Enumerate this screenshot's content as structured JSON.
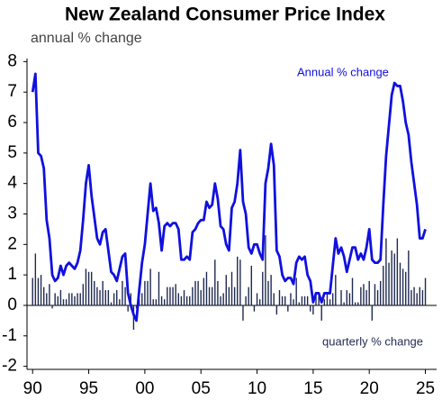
{
  "chart_data": {
    "type": "line_bar",
    "title": "New Zealand Consumer Price Index",
    "subtitle": "annual % change",
    "annotations": [
      "Annual % change",
      "quarterly % change"
    ],
    "x": [
      1990,
      1990.25,
      1990.5,
      1990.75,
      1991,
      1991.25,
      1991.5,
      1991.75,
      1992,
      1992.25,
      1992.5,
      1992.75,
      1993,
      1993.25,
      1993.5,
      1993.75,
      1994,
      1994.25,
      1994.5,
      1994.75,
      1995,
      1995.25,
      1995.5,
      1995.75,
      1996,
      1996.25,
      1996.5,
      1996.75,
      1997,
      1997.25,
      1997.5,
      1997.75,
      1998,
      1998.25,
      1998.5,
      1998.75,
      1999,
      1999.25,
      1999.5,
      1999.75,
      2000,
      2000.25,
      2000.5,
      2000.75,
      2001,
      2001.25,
      2001.5,
      2001.75,
      2002,
      2002.25,
      2002.5,
      2002.75,
      2003,
      2003.25,
      2003.5,
      2003.75,
      2004,
      2004.25,
      2004.5,
      2004.75,
      2005,
      2005.25,
      2005.5,
      2005.75,
      2006,
      2006.25,
      2006.5,
      2006.75,
      2007,
      2007.25,
      2007.5,
      2007.75,
      2008,
      2008.25,
      2008.5,
      2008.75,
      2009,
      2009.25,
      2009.5,
      2009.75,
      2010,
      2010.25,
      2010.5,
      2010.75,
      2011,
      2011.25,
      2011.5,
      2011.75,
      2012,
      2012.25,
      2012.5,
      2012.75,
      2013,
      2013.25,
      2013.5,
      2013.75,
      2014,
      2014.25,
      2014.5,
      2014.75,
      2015,
      2015.25,
      2015.5,
      2015.75,
      2016,
      2016.25,
      2016.5,
      2016.75,
      2017,
      2017.25,
      2017.5,
      2017.75,
      2018,
      2018.25,
      2018.5,
      2018.75,
      2019,
      2019.25,
      2019.5,
      2019.75,
      2020,
      2020.25,
      2020.5,
      2020.75,
      2021,
      2021.25,
      2021.5,
      2021.75,
      2022,
      2022.25,
      2022.5,
      2022.75,
      2023,
      2023.25,
      2023.5,
      2023.75,
      2024,
      2024.25,
      2024.5,
      2024.75,
      2025
    ],
    "series": [
      {
        "name": "Annual % change",
        "kind": "line",
        "color": "#1010e0",
        "values": [
          7.0,
          7.6,
          5.0,
          4.9,
          4.5,
          2.8,
          2.2,
          1.0,
          0.8,
          0.9,
          1.3,
          1.0,
          1.3,
          1.4,
          1.3,
          1.2,
          1.4,
          1.8,
          2.8,
          4.0,
          4.6,
          3.6,
          2.9,
          2.2,
          2.0,
          2.4,
          2.5,
          1.8,
          1.1,
          1.0,
          0.8,
          1.2,
          1.6,
          1.7,
          0.4,
          0.0,
          -0.3,
          -0.5,
          0.5,
          1.4,
          2.0,
          3.0,
          4.0,
          3.1,
          3.2,
          2.7,
          1.8,
          2.6,
          2.7,
          2.6,
          2.7,
          2.7,
          2.5,
          1.5,
          1.5,
          1.6,
          1.5,
          2.4,
          2.5,
          2.7,
          2.8,
          2.8,
          3.4,
          3.2,
          3.3,
          4.0,
          3.5,
          2.6,
          2.5,
          2.0,
          1.8,
          3.2,
          3.4,
          4.0,
          5.1,
          3.4,
          3.0,
          1.9,
          1.7,
          2.0,
          2.0,
          1.7,
          1.5,
          4.0,
          4.5,
          5.3,
          4.6,
          1.8,
          1.6,
          1.0,
          0.8,
          0.9,
          0.9,
          0.7,
          1.4,
          1.6,
          1.5,
          1.6,
          1.0,
          0.8,
          0.1,
          0.4,
          0.4,
          0.1,
          0.4,
          0.4,
          0.4,
          1.3,
          2.2,
          1.7,
          1.9,
          1.6,
          1.1,
          1.5,
          1.9,
          1.9,
          1.5,
          1.7,
          1.5,
          1.9,
          2.5,
          1.5,
          1.4,
          1.4,
          1.5,
          3.3,
          4.9,
          5.9,
          6.9,
          7.3,
          7.2,
          7.2,
          6.7,
          6.0,
          5.6,
          4.7,
          4.0,
          3.3,
          2.2,
          2.2,
          2.5
        ]
      },
      {
        "name": "quarterly % change",
        "kind": "bar",
        "color": "#1f2a50",
        "values": [
          0.9,
          1.7,
          0.9,
          1.0,
          0.6,
          0.4,
          0.7,
          -0.1,
          0.4,
          0.3,
          0.5,
          0.2,
          0.2,
          0.4,
          0.4,
          0.3,
          0.4,
          0.4,
          0.7,
          1.2,
          1.1,
          1.1,
          0.8,
          0.6,
          0.5,
          0.8,
          0.5,
          0.5,
          0.1,
          0.4,
          0.5,
          0.2,
          0.8,
          0.6,
          -0.2,
          0.4,
          -0.8,
          -0.1,
          0.2,
          0.4,
          0.8,
          0.8,
          1.2,
          0.2,
          0.2,
          1.1,
          0.3,
          0.2,
          0.6,
          0.6,
          0.6,
          0.7,
          0.4,
          0.3,
          0.5,
          0.3,
          0.3,
          0.6,
          0.8,
          0.8,
          0.5,
          0.9,
          1.1,
          0.6,
          0.6,
          1.5,
          0.8,
          0.3,
          0.4,
          1.0,
          0.6,
          1.1,
          0.6,
          1.6,
          1.5,
          -0.5,
          0.3,
          0.6,
          1.3,
          -0.2,
          0.4,
          0.2,
          1.1,
          2.3,
          0.8,
          1.0,
          0.4,
          -0.3,
          0.5,
          0.3,
          0.3,
          -0.2,
          0.4,
          0.2,
          0.9,
          0.1,
          0.3,
          0.3,
          0.3,
          -0.2,
          -0.3,
          0.4,
          0.3,
          -0.5,
          0.2,
          0.4,
          0.2,
          0.4,
          1.0,
          0.0,
          0.5,
          0.1,
          0.5,
          0.4,
          0.9,
          0.1,
          0.1,
          0.6,
          0.7,
          0.5,
          0.8,
          -0.5,
          0.7,
          0.5,
          0.8,
          1.3,
          2.2,
          1.4,
          1.8,
          1.7,
          2.2,
          1.4,
          1.2,
          1.1,
          1.8,
          0.5,
          0.6,
          0.4,
          0.6,
          0.5,
          0.9
        ]
      }
    ],
    "xlim": [
      1989.5,
      2026
    ],
    "xticks": [
      {
        "value": 1990,
        "label": "90"
      },
      {
        "value": 1995,
        "label": "95"
      },
      {
        "value": 2000,
        "label": "00"
      },
      {
        "value": 2005,
        "label": "05"
      },
      {
        "value": 2010,
        "label": "10"
      },
      {
        "value": 2015,
        "label": "15"
      },
      {
        "value": 2020,
        "label": "20"
      },
      {
        "value": 2025,
        "label": "25"
      }
    ],
    "ylim": [
      -2.1,
      8.1
    ],
    "yticks": [
      -2,
      -1,
      0,
      1,
      2,
      3,
      4,
      5,
      6,
      7,
      8
    ]
  }
}
